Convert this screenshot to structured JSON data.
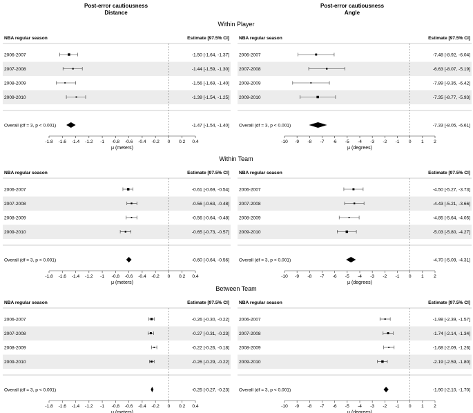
{
  "headers": {
    "left": {
      "line1": "Post-error cautiousness",
      "line2": "Distance"
    },
    "right": {
      "line1": "Post-error cautiousness",
      "line2": "Angle"
    }
  },
  "section_titles": [
    "Within Player",
    "Within Team",
    "Between Team"
  ],
  "column_labels": {
    "study": "NBA regular season",
    "estimate": "Estimate [97.5% CI]"
  },
  "overall_label": "Overall (df = 3, p < 0.001)",
  "axes": {
    "left": {
      "label": "μ (meters)",
      "min": -1.8,
      "max": 0.4,
      "ticks": [
        "-1.8",
        "-1.6",
        "-1.4",
        "-1.2",
        "-1",
        "-0.8",
        "-0.6",
        "-0.4",
        "-0.2",
        "0",
        "0.2",
        "0.4"
      ],
      "tick_values": [
        -1.8,
        -1.6,
        -1.4,
        -1.2,
        -1,
        -0.8,
        -0.6,
        -0.4,
        -0.2,
        0,
        0.2,
        0.4
      ]
    },
    "right": {
      "label": "μ (degrees)",
      "min": -10,
      "max": 2,
      "ticks": [
        "-10",
        "-9",
        "-8",
        "-7",
        "-6",
        "-5",
        "-4",
        "-3",
        "-2",
        "-1",
        "0",
        "1",
        "2"
      ],
      "tick_values": [
        -10,
        -9,
        -8,
        -7,
        -6,
        -5,
        -4,
        -3,
        -2,
        -1,
        0,
        1,
        2
      ]
    }
  },
  "chart_data": [
    {
      "type": "forest",
      "section": "Within Player",
      "measure": "Distance",
      "xlabel": "μ (meters)",
      "xlim": [
        -1.8,
        0.4
      ],
      "rows": [
        {
          "study": "2006-2007",
          "est": -1.5,
          "lo": -1.64,
          "hi": -1.37,
          "text": "-1.50 [-1.64, -1.37]",
          "weight": 0.6
        },
        {
          "study": "2007-2008",
          "est": -1.44,
          "lo": -1.59,
          "hi": -1.3,
          "text": "-1.44 [-1.59, -1.30]",
          "weight": 0.25
        },
        {
          "study": "2008-2009",
          "est": -1.56,
          "lo": -1.69,
          "hi": -1.4,
          "text": "-1.56 [-1.69, -1.40]",
          "weight": 0.15
        },
        {
          "study": "2009-2010",
          "est": -1.39,
          "lo": -1.54,
          "hi": -1.25,
          "text": "-1.39 [-1.54, -1.25]",
          "weight": 0.2
        }
      ],
      "overall": {
        "est": -1.47,
        "lo": -1.54,
        "hi": -1.4,
        "text": "-1.47 [-1.54, -1.40]"
      }
    },
    {
      "type": "forest",
      "section": "Within Player",
      "measure": "Angle",
      "xlabel": "μ (degrees)",
      "xlim": [
        -10,
        2
      ],
      "rows": [
        {
          "study": "2006-2007",
          "est": -7.48,
          "lo": -8.92,
          "hi": -6.04,
          "text": "-7.48 [-8.92, -6.04]",
          "weight": 0.45
        },
        {
          "study": "2007-2008",
          "est": -6.63,
          "lo": -8.07,
          "hi": -5.19,
          "text": "-6.63 [-8.07, -5.19]",
          "weight": 0.3
        },
        {
          "study": "2008-2009",
          "est": -7.89,
          "lo": -9.35,
          "hi": -6.42,
          "text": "-7.89 [-9.35, -6.42]",
          "weight": 0.15
        },
        {
          "study": "2009-2010",
          "est": -7.35,
          "lo": -8.77,
          "hi": -5.93,
          "text": "-7.35 [-8.77, -5.93]",
          "weight": 0.6
        }
      ],
      "overall": {
        "est": -7.33,
        "lo": -8.05,
        "hi": -6.61,
        "text": "-7.33 [-8.05, -6.61]"
      }
    },
    {
      "type": "forest",
      "section": "Within Team",
      "measure": "Distance",
      "xlabel": "μ (meters)",
      "xlim": [
        -1.8,
        0.4
      ],
      "rows": [
        {
          "study": "2006-2007",
          "est": -0.61,
          "lo": -0.69,
          "hi": -0.54,
          "text": "-0.61 [-0.69, -0.54]",
          "weight": 0.6
        },
        {
          "study": "2007-2008",
          "est": -0.56,
          "lo": -0.63,
          "hi": -0.48,
          "text": "-0.56 [-0.63, -0.48]",
          "weight": 0.3
        },
        {
          "study": "2008-2009",
          "est": -0.56,
          "lo": -0.64,
          "hi": -0.48,
          "text": "-0.56 [-0.64, -0.48]",
          "weight": 0.15
        },
        {
          "study": "2009-2010",
          "est": -0.65,
          "lo": -0.73,
          "hi": -0.57,
          "text": "-0.65 [-0.73, -0.57]",
          "weight": 0.3
        }
      ],
      "overall": {
        "est": -0.6,
        "lo": -0.64,
        "hi": -0.56,
        "text": "-0.60 [-0.64, -0.56]"
      }
    },
    {
      "type": "forest",
      "section": "Within Team",
      "measure": "Angle",
      "xlabel": "μ (degrees)",
      "xlim": [
        -10,
        2
      ],
      "rows": [
        {
          "study": "2006-2007",
          "est": -4.5,
          "lo": -5.27,
          "hi": -3.73,
          "text": "-4.50 [-5.27, -3.73]",
          "weight": 0.45
        },
        {
          "study": "2007-2008",
          "est": -4.43,
          "lo": -5.21,
          "hi": -3.66,
          "text": "-4.43 [-5.21, -3.66]",
          "weight": 0.3
        },
        {
          "study": "2008-2009",
          "est": -4.85,
          "lo": -5.64,
          "hi": -4.05,
          "text": "-4.85 [-5.64, -4.05]",
          "weight": 0.15
        },
        {
          "study": "2009-2010",
          "est": -5.03,
          "lo": -5.8,
          "hi": -4.27,
          "text": "-5.03 [-5.80, -4.27]",
          "weight": 0.6
        }
      ],
      "overall": {
        "est": -4.7,
        "lo": -5.09,
        "hi": -4.31,
        "text": "-4.70 [-5.09, -4.31]"
      }
    },
    {
      "type": "forest",
      "section": "Between Team",
      "measure": "Distance",
      "xlabel": "μ (meters)",
      "xlim": [
        -1.8,
        0.4
      ],
      "rows": [
        {
          "study": "2006-2007",
          "est": -0.26,
          "lo": -0.3,
          "hi": -0.22,
          "text": "-0.26 [-0.30, -0.22]",
          "weight": 0.55
        },
        {
          "study": "2007-2008",
          "est": -0.27,
          "lo": -0.31,
          "hi": -0.23,
          "text": "-0.27 [-0.31, -0.23]",
          "weight": 0.45
        },
        {
          "study": "2008-2009",
          "est": -0.22,
          "lo": -0.26,
          "hi": -0.18,
          "text": "-0.22 [-0.26, -0.18]",
          "weight": 0.15
        },
        {
          "study": "2009-2010",
          "est": -0.26,
          "lo": -0.29,
          "hi": -0.22,
          "text": "-0.26 [-0.29, -0.22]",
          "weight": 0.45
        }
      ],
      "overall": {
        "est": -0.25,
        "lo": -0.27,
        "hi": -0.23,
        "text": "-0.25 [-0.27, -0.23]"
      }
    },
    {
      "type": "forest",
      "section": "Between Team",
      "measure": "Angle",
      "xlabel": "μ (degrees)",
      "xlim": [
        -10,
        2
      ],
      "rows": [
        {
          "study": "2006-2007",
          "est": -1.98,
          "lo": -2.39,
          "hi": -1.57,
          "text": "-1.98 [-2.39, -1.57]",
          "weight": 0.2
        },
        {
          "study": "2007-2008",
          "est": -1.74,
          "lo": -2.14,
          "hi": -1.34,
          "text": "-1.74 [-2.14, -1.34]",
          "weight": 0.45
        },
        {
          "study": "2008-2009",
          "est": -1.68,
          "lo": -2.09,
          "hi": -1.26,
          "text": "-1.68 [-2.09, -1.26]",
          "weight": 0.15
        },
        {
          "study": "2009-2010",
          "est": -2.19,
          "lo": -2.59,
          "hi": -1.8,
          "text": "-2.19 [-2.59, -1.80]",
          "weight": 0.6
        }
      ],
      "overall": {
        "est": -1.9,
        "lo": -2.1,
        "hi": -1.7,
        "text": "-1.90 [-2.10, -1.70]"
      }
    }
  ]
}
